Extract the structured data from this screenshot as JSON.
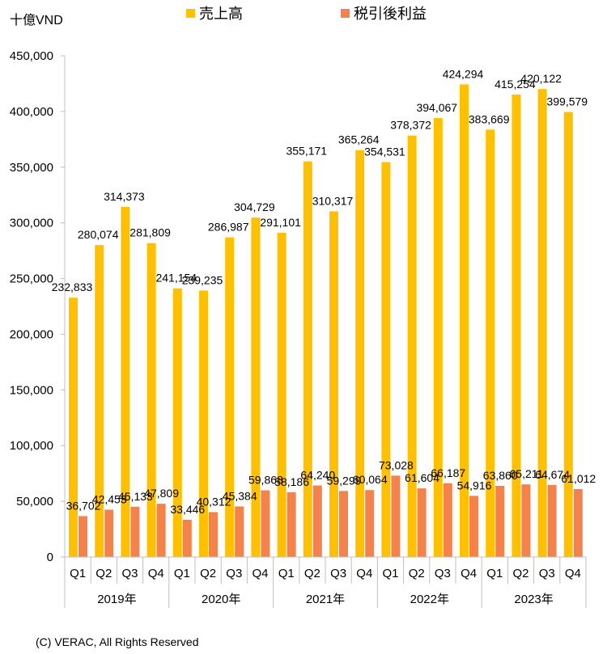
{
  "chart_data": {
    "type": "bar",
    "unit_label": "十億VND",
    "years": [
      "2019年",
      "2020年",
      "2021年",
      "2022年",
      "2023年"
    ],
    "quarters": [
      "Q1",
      "Q2",
      "Q3",
      "Q4"
    ],
    "categories": [
      "Q1",
      "Q2",
      "Q3",
      "Q4",
      "Q1",
      "Q2",
      "Q3",
      "Q4",
      "Q1",
      "Q2",
      "Q3",
      "Q4",
      "Q1",
      "Q2",
      "Q3",
      "Q4",
      "Q1",
      "Q2",
      "Q3",
      "Q4"
    ],
    "series": [
      {
        "name": "売上高",
        "color": "#FFC000",
        "values": [
          232833,
          280074,
          314373,
          281809,
          241154,
          239235,
          286987,
          304729,
          291101,
          355171,
          310317,
          365264,
          354531,
          378372,
          394067,
          424294,
          383669,
          415254,
          420122,
          399579
        ]
      },
      {
        "name": "税引後利益",
        "color": "#F5814B",
        "values": [
          36702,
          42453,
          45133,
          47809,
          33446,
          40312,
          45384,
          59868,
          58186,
          64240,
          59299,
          60064,
          73028,
          61604,
          66187,
          54916,
          63860,
          65211,
          64674,
          61012
        ]
      }
    ],
    "ylim": [
      0,
      450000
    ],
    "yticks": [
      0,
      50000,
      100000,
      150000,
      200000,
      250000,
      300000,
      350000,
      400000,
      450000
    ],
    "grid": false,
    "legend_position": "top"
  },
  "footer": "(C) VERAC, All Rights Reserved"
}
